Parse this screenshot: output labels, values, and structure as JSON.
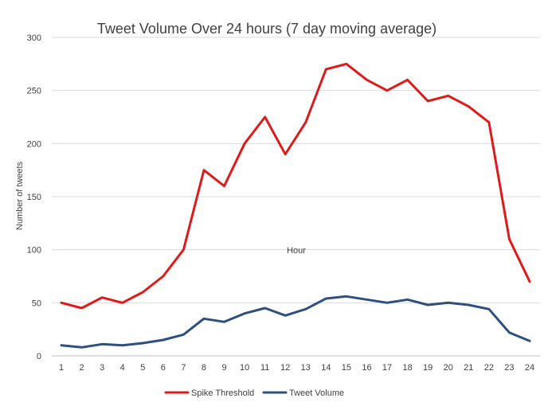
{
  "chart_data": {
    "type": "line",
    "title": "Tweet Volume Over 24 hours (7 day moving average)",
    "xlabel": "Hour",
    "ylabel": "Number of tweets",
    "x": [
      1,
      2,
      3,
      4,
      5,
      6,
      7,
      8,
      9,
      10,
      11,
      12,
      13,
      14,
      15,
      16,
      17,
      18,
      19,
      20,
      21,
      22,
      23,
      24
    ],
    "ylim": [
      0,
      300
    ],
    "yticks": [
      0,
      50,
      100,
      150,
      200,
      250,
      300
    ],
    "grid": true,
    "legend_position": "bottom",
    "series": [
      {
        "name": "Spike Threshold",
        "color": "#dc1c1c",
        "values": [
          50,
          45,
          55,
          50,
          60,
          75,
          100,
          175,
          160,
          200,
          225,
          190,
          220,
          270,
          275,
          260,
          250,
          260,
          240,
          245,
          235,
          220,
          110,
          70
        ]
      },
      {
        "name": "Tweet Volume",
        "color": "#2f4f7f",
        "values": [
          10,
          8,
          11,
          10,
          12,
          15,
          20,
          35,
          32,
          40,
          45,
          38,
          44,
          54,
          56,
          53,
          50,
          53,
          48,
          50,
          48,
          44,
          22,
          14
        ]
      }
    ]
  }
}
